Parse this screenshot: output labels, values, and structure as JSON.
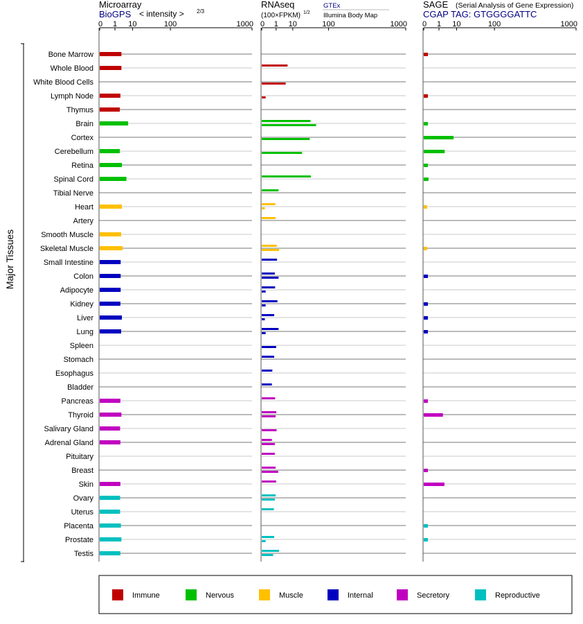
{
  "panels": [
    {
      "title": "Microarray",
      "subtitle": "BioGPS",
      "scale_label": "< intensity >",
      "scale_exp": "2/3",
      "ticks": [
        "0",
        "1",
        "10",
        "100",
        "1000"
      ]
    },
    {
      "title": "RNAseq",
      "scale_label": "(100×FPKM)",
      "scale_exp": "1/2",
      "source_top": "GTEx",
      "source_bottom": "Illumina Body Map",
      "ticks": [
        "0",
        "1",
        "10",
        "100",
        "1000"
      ]
    },
    {
      "title": "SAGE",
      "title_note": "(Serial Analysis of Gene Expression)",
      "subtitle": "CGAP TAG: GTGGGGATTC",
      "ticks": [
        "0",
        "1",
        "10",
        "100",
        "1000"
      ]
    }
  ],
  "y_group_label": "Major Tissues",
  "legend": [
    {
      "label": "Immune",
      "color": "#c00000"
    },
    {
      "label": "Nervous",
      "color": "#00c000"
    },
    {
      "label": "Muscle",
      "color": "#ffc000"
    },
    {
      "label": "Internal",
      "color": "#0000c0"
    },
    {
      "label": "Secretory",
      "color": "#c000c0"
    },
    {
      "label": "Reproductive",
      "color": "#00c0c0"
    }
  ],
  "chart_data": {
    "type": "bar",
    "orientation": "horizontal",
    "x_scale": "power (0, 1, 10, 100, 1000 tick marks)",
    "xlim": [
      0,
      1000
    ],
    "categories": [
      "Bone Marrow",
      "Whole Blood",
      "White Blood Cells",
      "Lymph Node",
      "Thymus",
      "Brain",
      "Cortex",
      "Cerebellum",
      "Retina",
      "Spinal Cord",
      "Tibial Nerve",
      "Heart",
      "Artery",
      "Smooth Muscle",
      "Skeletal Muscle",
      "Small Intestine",
      "Colon",
      "Adipocyte",
      "Kidney",
      "Liver",
      "Lung",
      "Spleen",
      "Stomach",
      "Esophagus",
      "Bladder",
      "Pancreas",
      "Thyroid",
      "Salivary Gland",
      "Adrenal Gland",
      "Pituitary",
      "Breast",
      "Skin",
      "Ovary",
      "Uterus",
      "Placenta",
      "Prostate",
      "Testis"
    ],
    "category_group": [
      "Immune",
      "Immune",
      "Immune",
      "Immune",
      "Immune",
      "Nervous",
      "Nervous",
      "Nervous",
      "Nervous",
      "Nervous",
      "Nervous",
      "Muscle",
      "Muscle",
      "Muscle",
      "Muscle",
      "Internal",
      "Internal",
      "Internal",
      "Internal",
      "Internal",
      "Internal",
      "Internal",
      "Internal",
      "Internal",
      "Internal",
      "Secretory",
      "Secretory",
      "Secretory",
      "Secretory",
      "Secretory",
      "Secretory",
      "Secretory",
      "Reproductive",
      "Reproductive",
      "Reproductive",
      "Reproductive",
      "Reproductive"
    ],
    "series": [
      {
        "name": "Microarray",
        "values": [
          2.9,
          2.9,
          null,
          2.5,
          2.3,
          6.5,
          null,
          2.3,
          3.1,
          5.4,
          null,
          3.1,
          null,
          2.8,
          3.4,
          2.6,
          2.6,
          2.6,
          2.5,
          3.1,
          2.8,
          null,
          null,
          null,
          null,
          2.5,
          2.9,
          2.4,
          2.5,
          null,
          null,
          2.5,
          2.4,
          2.4,
          2.7,
          2.9,
          2.5
        ]
      },
      {
        "name": "GTEx",
        "values": [
          null,
          5.8,
          null,
          null,
          null,
          39,
          null,
          null,
          null,
          40,
          1.6,
          0.85,
          0.9,
          null,
          1.15,
          1.2,
          0.75,
          0.8,
          1.3,
          0.65,
          1.6,
          null,
          0.65,
          0.4,
          0.35,
          0.8,
          1.05,
          null,
          0.35,
          0.75,
          0.9,
          1.0,
          0.9,
          0.6,
          null,
          0.65,
          1.75
        ]
      },
      {
        "name": "Illumina Body Map",
        "values": [
          null,
          null,
          4.6,
          0.02,
          null,
          54,
          37,
          22,
          null,
          null,
          null,
          0.01,
          null,
          null,
          1.75,
          null,
          1.6,
          0.02,
          0.02,
          0.01,
          0.02,
          1.0,
          null,
          null,
          null,
          null,
          0.9,
          1.1,
          0.75,
          null,
          1.5,
          null,
          0.75,
          null,
          null,
          0.02,
          0.5
        ]
      },
      {
        "name": "SAGE",
        "values": [
          0.02,
          null,
          null,
          0.02,
          null,
          0.02,
          7.5,
          2.6,
          0.02,
          0.03,
          null,
          0.01,
          null,
          null,
          0.01,
          null,
          0.02,
          null,
          0.02,
          0.02,
          0.02,
          null,
          null,
          null,
          null,
          0.02,
          2.0,
          null,
          null,
          null,
          0.02,
          2.5,
          null,
          null,
          0.02,
          0.02,
          null
        ]
      }
    ]
  }
}
